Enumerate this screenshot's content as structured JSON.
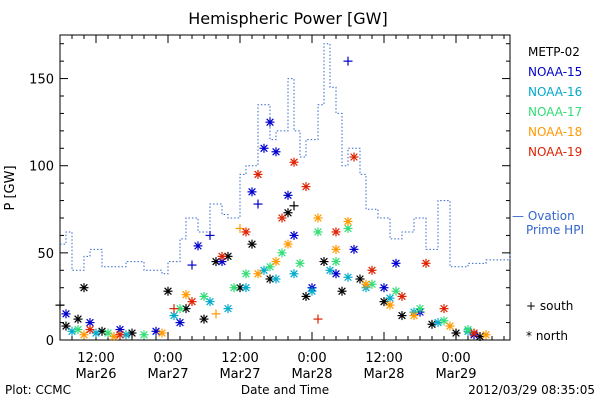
{
  "chart_data": {
    "type": "scatter",
    "title": "Hemispheric Power [GW]",
    "ylabel": "P [GW]",
    "xlabel": "Date and Time",
    "ylim": [
      0,
      175
    ],
    "xlim": [
      "2012-03-26T06:00",
      "2012-03-29T09:00"
    ],
    "yticks": [
      0,
      50,
      100,
      150
    ],
    "xticks": [
      {
        "t": "2012-03-26T12:00",
        "line1": "12:00",
        "line2": "Mar26"
      },
      {
        "t": "2012-03-27T00:00",
        "line1": "0:00",
        "line2": "Mar27"
      },
      {
        "t": "2012-03-27T12:00",
        "line1": "12:00",
        "line2": "Mar27"
      },
      {
        "t": "2012-03-28T00:00",
        "line1": "0:00",
        "line2": "Mar28"
      },
      {
        "t": "2012-03-28T12:00",
        "line1": "12:00",
        "line2": "Mar28"
      },
      {
        "t": "2012-03-29T00:00",
        "line1": "0:00",
        "line2": "Mar29"
      }
    ],
    "series": [
      {
        "name": "METP-02",
        "color": "#000000",
        "points": [
          [
            "2012-03-26T06:00",
            20,
            "+"
          ],
          [
            "2012-03-26T07:00",
            8,
            "*"
          ],
          [
            "2012-03-26T09:00",
            12,
            "*"
          ],
          [
            "2012-03-26T10:00",
            30,
            "*"
          ],
          [
            "2012-03-26T13:00",
            5,
            "*"
          ],
          [
            "2012-03-26T18:00",
            4,
            "*"
          ],
          [
            "2012-03-27T00:00",
            28,
            "*"
          ],
          [
            "2012-03-27T03:00",
            18,
            "*"
          ],
          [
            "2012-03-27T06:00",
            12,
            "*"
          ],
          [
            "2012-03-27T08:00",
            45,
            "*"
          ],
          [
            "2012-03-27T10:00",
            48,
            "*"
          ],
          [
            "2012-03-27T12:00",
            30,
            "*"
          ],
          [
            "2012-03-27T14:00",
            55,
            "*"
          ],
          [
            "2012-03-27T17:00",
            35,
            "*"
          ],
          [
            "2012-03-27T20:00",
            73,
            "*"
          ],
          [
            "2012-03-27T21:00",
            77,
            "+"
          ],
          [
            "2012-03-27T23:00",
            25,
            "*"
          ],
          [
            "2012-03-28T02:00",
            45,
            "*"
          ],
          [
            "2012-03-28T05:00",
            28,
            "*"
          ],
          [
            "2012-03-28T08:00",
            35,
            "*"
          ],
          [
            "2012-03-28T12:00",
            22,
            "*"
          ],
          [
            "2012-03-28T15:00",
            14,
            "*"
          ],
          [
            "2012-03-28T20:00",
            9,
            "*"
          ],
          [
            "2012-03-29T00:00",
            4,
            "*"
          ],
          [
            "2012-03-29T04:00",
            2,
            "*"
          ]
        ]
      },
      {
        "name": "NOAA-15",
        "color": "#0000cc",
        "points": [
          [
            "2012-03-26T07:00",
            15,
            "*"
          ],
          [
            "2012-03-26T11:00",
            10,
            "*"
          ],
          [
            "2012-03-26T16:00",
            6,
            "*"
          ],
          [
            "2012-03-26T22:00",
            5,
            "*"
          ],
          [
            "2012-03-27T02:00",
            10,
            "*"
          ],
          [
            "2012-03-27T04:00",
            43,
            "+"
          ],
          [
            "2012-03-27T05:00",
            54,
            "*"
          ],
          [
            "2012-03-27T07:00",
            60,
            "+"
          ],
          [
            "2012-03-27T09:00",
            45,
            "*"
          ],
          [
            "2012-03-27T14:00",
            85,
            "*"
          ],
          [
            "2012-03-27T15:00",
            78,
            "+"
          ],
          [
            "2012-03-27T16:00",
            110,
            "*"
          ],
          [
            "2012-03-27T17:00",
            125,
            "*"
          ],
          [
            "2012-03-27T18:00",
            108,
            "*"
          ],
          [
            "2012-03-27T20:00",
            83,
            "*"
          ],
          [
            "2012-03-27T21:00",
            60,
            "*"
          ],
          [
            "2012-03-28T00:00",
            30,
            "*"
          ],
          [
            "2012-03-28T04:00",
            38,
            "*"
          ],
          [
            "2012-03-28T06:00",
            160,
            "+"
          ],
          [
            "2012-03-28T07:00",
            52,
            "*"
          ],
          [
            "2012-03-28T12:00",
            30,
            "*"
          ],
          [
            "2012-03-28T14:00",
            44,
            "*"
          ],
          [
            "2012-03-28T18:00",
            16,
            "*"
          ],
          [
            "2012-03-29T03:00",
            3,
            "*"
          ]
        ]
      },
      {
        "name": "NOAA-16",
        "color": "#00aacc",
        "points": [
          [
            "2012-03-26T08:00",
            5,
            "*"
          ],
          [
            "2012-03-26T12:00",
            4,
            "*"
          ],
          [
            "2012-03-26T17:00",
            3,
            "*"
          ],
          [
            "2012-03-27T01:00",
            14,
            "*"
          ],
          [
            "2012-03-27T07:00",
            22,
            "*"
          ],
          [
            "2012-03-27T10:00",
            18,
            "*"
          ],
          [
            "2012-03-27T13:00",
            30,
            "*"
          ],
          [
            "2012-03-27T16:00",
            40,
            "*"
          ],
          [
            "2012-03-27T18:00",
            35,
            "*"
          ],
          [
            "2012-03-27T21:00",
            38,
            "*"
          ],
          [
            "2012-03-28T00:00",
            28,
            "*"
          ],
          [
            "2012-03-28T03:00",
            40,
            "*"
          ],
          [
            "2012-03-28T06:00",
            36,
            "*"
          ],
          [
            "2012-03-28T09:00",
            30,
            "*"
          ],
          [
            "2012-03-28T13:00",
            24,
            "*"
          ],
          [
            "2012-03-28T17:00",
            16,
            "*"
          ],
          [
            "2012-03-28T21:00",
            10,
            "*"
          ],
          [
            "2012-03-29T02:00",
            5,
            "*"
          ]
        ]
      },
      {
        "name": "NOAA-17",
        "color": "#33dd77",
        "points": [
          [
            "2012-03-26T09:00",
            6,
            "*"
          ],
          [
            "2012-03-26T14:00",
            4,
            "*"
          ],
          [
            "2012-03-26T20:00",
            3,
            "*"
          ],
          [
            "2012-03-27T02:00",
            18,
            "*"
          ],
          [
            "2012-03-27T06:00",
            25,
            "*"
          ],
          [
            "2012-03-27T11:00",
            30,
            "*"
          ],
          [
            "2012-03-27T13:00",
            38,
            "*"
          ],
          [
            "2012-03-27T17:00",
            42,
            "*"
          ],
          [
            "2012-03-27T19:00",
            50,
            "*"
          ],
          [
            "2012-03-27T22:00",
            44,
            "*"
          ],
          [
            "2012-03-28T01:00",
            62,
            "*"
          ],
          [
            "2012-03-28T04:00",
            45,
            "*"
          ],
          [
            "2012-03-28T06:00",
            64,
            "*"
          ],
          [
            "2012-03-28T10:00",
            32,
            "*"
          ],
          [
            "2012-03-28T14:00",
            28,
            "*"
          ],
          [
            "2012-03-28T18:00",
            18,
            "*"
          ],
          [
            "2012-03-28T22:00",
            11,
            "*"
          ],
          [
            "2012-03-29T02:00",
            6,
            "*"
          ]
        ]
      },
      {
        "name": "NOAA-18",
        "color": "#ff9900",
        "points": [
          [
            "2012-03-26T10:00",
            3,
            "*"
          ],
          [
            "2012-03-26T15:00",
            2,
            "*"
          ],
          [
            "2012-03-26T23:00",
            4,
            "*"
          ],
          [
            "2012-03-27T03:00",
            26,
            "*"
          ],
          [
            "2012-03-27T08:00",
            15,
            "+"
          ],
          [
            "2012-03-27T12:00",
            64,
            "+"
          ],
          [
            "2012-03-27T15:00",
            38,
            "*"
          ],
          [
            "2012-03-27T18:00",
            45,
            "*"
          ],
          [
            "2012-03-27T20:00",
            55,
            "*"
          ],
          [
            "2012-03-28T01:00",
            70,
            "*"
          ],
          [
            "2012-03-28T04:00",
            52,
            "*"
          ],
          [
            "2012-03-28T06:00",
            68,
            "*"
          ],
          [
            "2012-03-28T09:00",
            32,
            "*"
          ],
          [
            "2012-03-28T13:00",
            20,
            "*"
          ],
          [
            "2012-03-28T17:00",
            14,
            "*"
          ],
          [
            "2012-03-28T23:00",
            8,
            "*"
          ],
          [
            "2012-03-29T05:00",
            3,
            "*"
          ]
        ]
      },
      {
        "name": "NOAA-19",
        "color": "#dd2200",
        "points": [
          [
            "2012-03-26T11:00",
            6,
            "*"
          ],
          [
            "2012-03-26T16:00",
            3,
            "*"
          ],
          [
            "2012-03-27T01:00",
            18,
            "+"
          ],
          [
            "2012-03-27T04:00",
            22,
            "*"
          ],
          [
            "2012-03-27T09:00",
            48,
            "*"
          ],
          [
            "2012-03-27T13:00",
            62,
            "*"
          ],
          [
            "2012-03-27T15:00",
            95,
            "*"
          ],
          [
            "2012-03-27T19:00",
            70,
            "*"
          ],
          [
            "2012-03-27T21:00",
            102,
            "*"
          ],
          [
            "2012-03-27T23:00",
            88,
            "*"
          ],
          [
            "2012-03-28T01:00",
            12,
            "+"
          ],
          [
            "2012-03-28T04:00",
            62,
            "*"
          ],
          [
            "2012-03-28T07:00",
            105,
            "*"
          ],
          [
            "2012-03-28T10:00",
            40,
            "*"
          ],
          [
            "2012-03-28T15:00",
            25,
            "*"
          ],
          [
            "2012-03-28T19:00",
            44,
            "*"
          ],
          [
            "2012-03-28T22:00",
            18,
            "*"
          ],
          [
            "2012-03-29T03:00",
            4,
            "*"
          ]
        ]
      }
    ],
    "ovation": {
      "name_line1": "— Ovation",
      "name_line2": "Prime HPI",
      "color": "#3366cc",
      "points": [
        [
          "2012-03-26T06:00",
          55
        ],
        [
          "2012-03-26T07:00",
          62
        ],
        [
          "2012-03-26T08:00",
          40
        ],
        [
          "2012-03-26T10:00",
          48
        ],
        [
          "2012-03-26T11:00",
          52
        ],
        [
          "2012-03-26T13:00",
          42
        ],
        [
          "2012-03-26T17:00",
          45
        ],
        [
          "2012-03-26T20:00",
          40
        ],
        [
          "2012-03-26T23:00",
          38
        ],
        [
          "2012-03-27T00:00",
          45
        ],
        [
          "2012-03-27T02:00",
          58
        ],
        [
          "2012-03-27T03:00",
          70
        ],
        [
          "2012-03-27T05:00",
          62
        ],
        [
          "2012-03-27T07:00",
          78
        ],
        [
          "2012-03-27T09:00",
          72
        ],
        [
          "2012-03-27T10:00",
          70
        ],
        [
          "2012-03-27T12:00",
          95
        ],
        [
          "2012-03-27T13:00",
          100
        ],
        [
          "2012-03-27T15:00",
          135
        ],
        [
          "2012-03-27T17:00",
          115
        ],
        [
          "2012-03-27T18:00",
          120
        ],
        [
          "2012-03-27T20:00",
          150
        ],
        [
          "2012-03-27T21:00",
          120
        ],
        [
          "2012-03-27T22:00",
          105
        ],
        [
          "2012-03-27T23:00",
          115
        ],
        [
          "2012-03-28T01:00",
          135
        ],
        [
          "2012-03-28T02:00",
          170
        ],
        [
          "2012-03-28T03:00",
          145
        ],
        [
          "2012-03-28T04:00",
          130
        ],
        [
          "2012-03-28T05:00",
          100
        ],
        [
          "2012-03-28T06:00",
          110
        ],
        [
          "2012-03-28T08:00",
          95
        ],
        [
          "2012-03-28T09:00",
          75
        ],
        [
          "2012-03-28T11:00",
          70
        ],
        [
          "2012-03-28T13:00",
          58
        ],
        [
          "2012-03-28T15:00",
          62
        ],
        [
          "2012-03-28T17:00",
          70
        ],
        [
          "2012-03-28T19:00",
          52
        ],
        [
          "2012-03-28T21:00",
          80
        ],
        [
          "2012-03-28T23:00",
          42
        ],
        [
          "2012-03-29T02:00",
          44
        ],
        [
          "2012-03-29T05:00",
          46
        ],
        [
          "2012-03-29T09:00",
          50
        ]
      ]
    },
    "markers_legend": [
      {
        "symbol": "+",
        "label": "south"
      },
      {
        "symbol": "*",
        "label": "north"
      }
    ]
  },
  "footer": {
    "left": "Plot: CCMC",
    "right": "2012/03/29 08:35:05"
  }
}
